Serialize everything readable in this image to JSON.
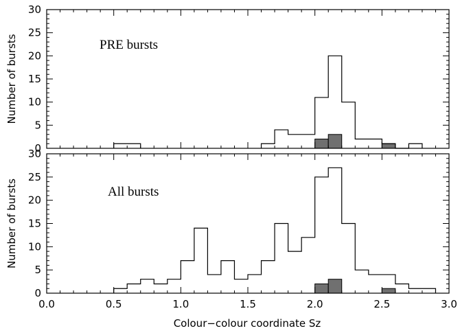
{
  "chart_data": [
    {
      "type": "bar",
      "title": "PRE bursts",
      "xlabel": "Colour−colour coordinate Sz",
      "ylabel": "Number of bursts",
      "xlim": [
        0.0,
        3.0
      ],
      "ylim": [
        0,
        30
      ],
      "bin_width": 0.1,
      "ytick_labels": [
        "0",
        "5",
        "10",
        "15",
        "20",
        "25",
        "30"
      ],
      "series": [
        {
          "style": "outline",
          "bin_starts": [
            0.5,
            0.6,
            1.6,
            1.7,
            1.8,
            1.9,
            2.0,
            2.1,
            2.2,
            2.3,
            2.4,
            2.5,
            2.6,
            2.7
          ],
          "values": [
            1,
            1,
            1,
            4,
            3,
            3,
            11,
            20,
            10,
            2,
            2,
            1,
            0,
            1
          ]
        },
        {
          "style": "filled",
          "color": "#707070",
          "bin_starts": [
            2.0,
            2.1,
            2.5
          ],
          "values": [
            2,
            3,
            1
          ]
        }
      ]
    },
    {
      "type": "bar",
      "title": "All bursts",
      "xlabel": "Colour−colour coordinate Sz",
      "ylabel": "Number of bursts",
      "xlim": [
        0.0,
        3.0
      ],
      "ylim": [
        0,
        30
      ],
      "bin_width": 0.1,
      "xtick_labels": [
        "0.0",
        "0.5",
        "1.0",
        "1.5",
        "2.0",
        "2.5",
        "3.0"
      ],
      "ytick_labels": [
        "0",
        "5",
        "10",
        "15",
        "20",
        "25",
        "30"
      ],
      "series": [
        {
          "style": "outline",
          "bin_starts": [
            0.5,
            0.6,
            0.7,
            0.8,
            0.9,
            1.0,
            1.1,
            1.2,
            1.3,
            1.4,
            1.5,
            1.6,
            1.7,
            1.8,
            1.9,
            2.0,
            2.1,
            2.2,
            2.3,
            2.4,
            2.5,
            2.6,
            2.7,
            2.8
          ],
          "values": [
            1,
            2,
            3,
            2,
            3,
            7,
            14,
            4,
            7,
            3,
            4,
            7,
            15,
            9,
            12,
            25,
            27,
            15,
            5,
            4,
            4,
            2,
            1,
            1
          ]
        },
        {
          "style": "filled",
          "color": "#707070",
          "bin_starts": [
            2.0,
            2.1,
            2.5
          ],
          "values": [
            2,
            3,
            1
          ]
        }
      ]
    }
  ]
}
